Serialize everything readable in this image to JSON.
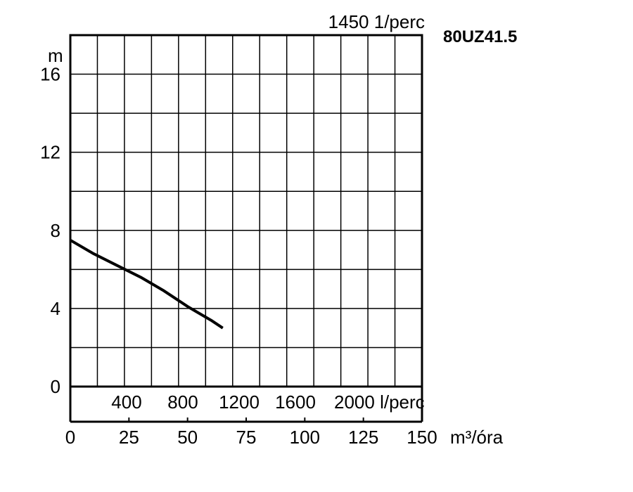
{
  "model_label": "80UZ41.5",
  "speed_label": "1450 1/perc",
  "chart_data": {
    "type": "line",
    "title": "80UZ41.5",
    "subtitle": "1450 1/perc",
    "ylabel": "m",
    "ylim": [
      0,
      18
    ],
    "yticks": [
      0,
      4,
      8,
      12,
      16
    ],
    "x_primary": {
      "label": "m³/óra",
      "ticks": [
        0,
        25,
        50,
        75,
        100,
        125,
        150
      ],
      "lim": [
        0,
        150
      ]
    },
    "x_secondary": {
      "label": "l/perc",
      "ticks": [
        400,
        800,
        1200,
        1600,
        2000
      ],
      "tick_labels": [
        "400",
        "800",
        "1200",
        "1600",
        "2000 l/perc"
      ],
      "lim": [
        0,
        2500
      ]
    },
    "grid": true,
    "series": [
      {
        "x": [
          0,
          10,
          20,
          30,
          40,
          50,
          60,
          65
        ],
        "y": [
          7.5,
          6.8,
          6.2,
          5.6,
          4.9,
          4.1,
          3.4,
          3.0
        ],
        "color": "#000000"
      }
    ]
  }
}
